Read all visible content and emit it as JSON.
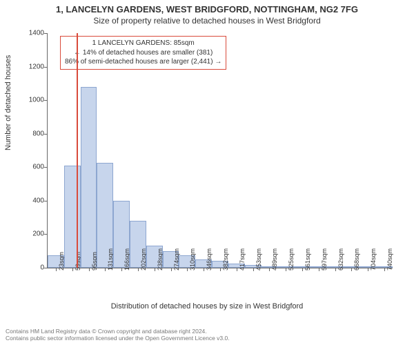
{
  "title_main": "1, LANCELYN GARDENS, WEST BRIDGFORD, NOTTINGHAM, NG2 7FG",
  "title_sub": "Size of property relative to detached houses in West Bridgford",
  "y_axis_label": "Number of detached houses",
  "x_axis_label": "Distribution of detached houses by size in West Bridgford",
  "chart": {
    "type": "histogram",
    "ylim": [
      0,
      1400
    ],
    "ytick_step": 200,
    "y_ticks": [
      0,
      200,
      400,
      600,
      800,
      1000,
      1200,
      1400
    ],
    "bar_color": "#c7d5ec",
    "bar_border_color": "#8da6d0",
    "background_color": "#ffffff",
    "axis_color": "#666666",
    "tick_label_fontsize": 10,
    "axis_label_fontsize": 11,
    "title_fontsize": 13,
    "x_labels": [
      "23sqm",
      "59sqm",
      "95sqm",
      "131sqm",
      "166sqm",
      "202sqm",
      "238sqm",
      "274sqm",
      "310sqm",
      "346sqm",
      "382sqm",
      "417sqm",
      "453sqm",
      "489sqm",
      "525sqm",
      "561sqm",
      "597sqm",
      "632sqm",
      "668sqm",
      "704sqm",
      "740sqm"
    ],
    "values": [
      75,
      610,
      1080,
      625,
      400,
      280,
      130,
      100,
      75,
      50,
      40,
      25,
      18,
      10,
      5,
      3,
      2,
      1,
      1,
      1,
      1
    ],
    "marker": {
      "bin_index": 1.75,
      "color": "#d94a3a"
    }
  },
  "info_box": {
    "line1": "1 LANCELYN GARDENS: 85sqm",
    "line2": "← 14% of detached houses are smaller (381)",
    "line3": "86% of semi-detached houses are larger (2,441) →",
    "border_color": "#d94a3a"
  },
  "footer": {
    "line1": "Contains HM Land Registry data © Crown copyright and database right 2024.",
    "line2": "Contains public sector information licensed under the Open Government Licence v3.0."
  }
}
